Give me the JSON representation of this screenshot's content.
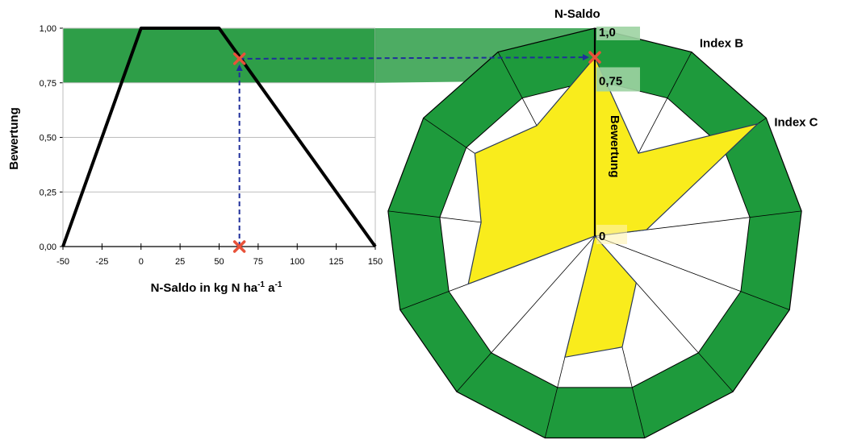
{
  "chart_data": [
    {
      "type": "line",
      "xlabel_main": "N-Saldo  in kg N ha",
      "xlabel_sup1": "-1",
      "xlabel_mid": " a",
      "xlabel_sup2": "-1",
      "ylabel": "Bewertung",
      "x_ticks": [
        "-50",
        "-25",
        "0",
        "25",
        "50",
        "75",
        "100",
        "125",
        "150"
      ],
      "y_ticks": [
        "0,00",
        "0,25",
        "0,50",
        "0,75",
        "1,00"
      ],
      "xlim": [
        -50,
        150
      ],
      "ylim": [
        0,
        1
      ],
      "grid": true,
      "series": [
        {
          "x": [
            -50,
            0,
            50,
            150
          ],
          "y": [
            0,
            1,
            1,
            0
          ]
        }
      ],
      "target_band": [
        0.75,
        1.0
      ],
      "marker_point": {
        "x": 63,
        "y": 0.86
      }
    },
    {
      "type": "radar",
      "axes_count": 13,
      "axis_labels": [
        "N-Saldo",
        "Index  B",
        "Index  C"
      ],
      "radial_labels": [
        "1,0",
        "0,75",
        "0"
      ],
      "radial_axis_title": "Bewertung",
      "rlim": [
        0,
        1
      ],
      "good_band": [
        0.75,
        1.0
      ],
      "values": [
        0.86,
        0.45,
        0.95,
        0.25,
        0.0,
        0.3,
        0.55,
        0.6,
        0.0,
        0.65,
        0.55,
        0.7,
        0.6
      ],
      "marker_value": 0.86
    }
  ],
  "colors": {
    "band": "#1e9a3c",
    "band_left": "#2e9e48",
    "radar_fill": "#f9ec1c",
    "radar_edge": "#2a3a5a",
    "marker": "#e8523a",
    "dash": "#1f2f9a"
  }
}
